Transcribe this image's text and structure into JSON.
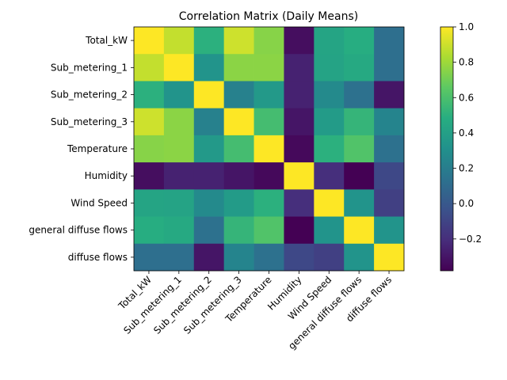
{
  "chart_data": {
    "type": "heatmap",
    "title": "Correlation Matrix (Daily Means)",
    "xlabel": "",
    "ylabel": "",
    "labels": [
      "Total_kW",
      "Sub_metering_1",
      "Sub_metering_2",
      "Sub_metering_3",
      "Temperature",
      "Humidity",
      "Wind Speed",
      "general diffuse flows",
      "diffuse flows"
    ],
    "matrix": [
      [
        1.0,
        0.88,
        0.5,
        0.9,
        0.75,
        -0.33,
        0.43,
        0.48,
        0.12
      ],
      [
        0.88,
        1.0,
        0.33,
        0.76,
        0.76,
        -0.25,
        0.42,
        0.46,
        0.12
      ],
      [
        0.5,
        0.33,
        1.0,
        0.22,
        0.36,
        -0.25,
        0.27,
        0.13,
        -0.3
      ],
      [
        0.9,
        0.76,
        0.22,
        1.0,
        0.58,
        -0.3,
        0.37,
        0.53,
        0.24
      ],
      [
        0.75,
        0.76,
        0.36,
        0.58,
        1.0,
        -0.35,
        0.5,
        0.62,
        0.13
      ],
      [
        -0.33,
        -0.25,
        -0.25,
        -0.3,
        -0.35,
        1.0,
        -0.2,
        -0.38,
        -0.08
      ],
      [
        0.43,
        0.42,
        0.27,
        0.37,
        0.5,
        -0.2,
        1.0,
        0.33,
        -0.12
      ],
      [
        0.48,
        0.46,
        0.13,
        0.53,
        0.62,
        -0.38,
        0.33,
        1.0,
        0.33
      ],
      [
        0.12,
        0.12,
        -0.3,
        0.24,
        0.13,
        -0.08,
        -0.12,
        0.33,
        1.0
      ]
    ],
    "colormap": "viridis",
    "vmin": -0.38,
    "vmax": 1.0,
    "colorbar_ticks": [
      -0.2,
      0.0,
      0.2,
      0.4,
      0.6,
      0.8,
      1.0
    ],
    "colorbar_tick_labels": [
      "−0.2",
      "0.0",
      "0.2",
      "0.4",
      "0.6",
      "0.8",
      "1.0"
    ],
    "grid": false,
    "legend": "colorbar-right"
  }
}
